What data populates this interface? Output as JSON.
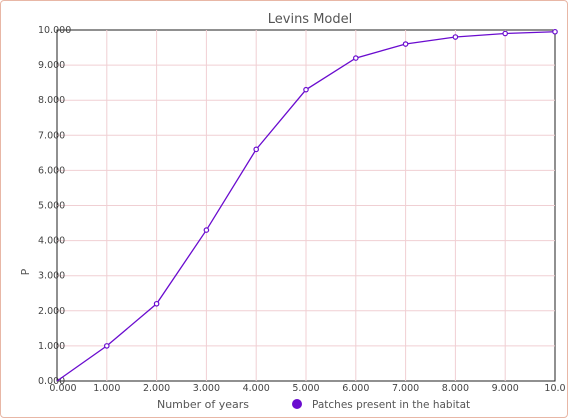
{
  "chart_data": {
    "type": "line",
    "title": "Levins Model",
    "xlabel": "Number of years",
    "ylabel": "P",
    "xlim": [
      0,
      10
    ],
    "ylim": [
      0,
      10
    ],
    "x_tick_labels": [
      "0.000",
      "1.000",
      "2.000",
      "3.000",
      "4.000",
      "5.000",
      "6.000",
      "7.000",
      "8.000",
      "9.000",
      "10.0"
    ],
    "y_tick_labels": [
      "0.000",
      "1.000",
      "2.000",
      "3.000",
      "4.000",
      "5.000",
      "6.000",
      "7.000",
      "8.000",
      "9.000",
      "10.000"
    ],
    "grid": true,
    "legend_position": "bottom",
    "series": [
      {
        "name": "Patches present in the habitat",
        "color": "#6a0ccf",
        "x": [
          0,
          1,
          2,
          3,
          4,
          5,
          6,
          7,
          8,
          9,
          10
        ],
        "y": [
          0.0,
          1.0,
          2.2,
          4.3,
          6.6,
          8.3,
          9.2,
          9.6,
          9.8,
          9.9,
          9.95
        ]
      }
    ]
  }
}
